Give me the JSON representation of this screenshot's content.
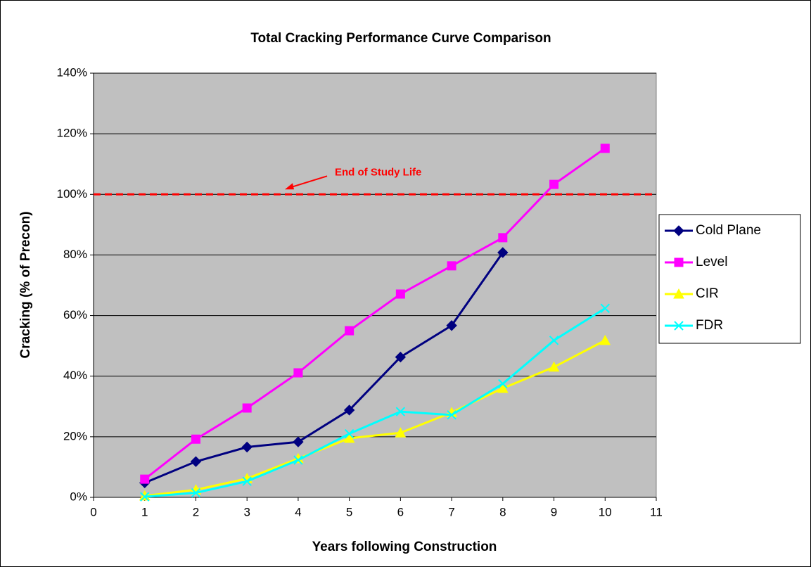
{
  "chart_data": {
    "type": "line",
    "title": "Total Cracking Performance Curve Comparison",
    "x_label": "Years following Construction",
    "y_label": "Cracking (% of Precon)",
    "x": [
      1,
      2,
      3,
      4,
      5,
      6,
      7,
      8,
      9,
      10
    ],
    "series": [
      {
        "name": "Cold Plane",
        "color": "#000080",
        "marker": "diamond",
        "values": [
          4.8,
          11.8,
          16.6,
          18.3,
          28.8,
          46.3,
          56.7,
          80.8,
          null,
          null
        ]
      },
      {
        "name": "Level",
        "color": "#ff00ff",
        "marker": "square",
        "values": [
          6.0,
          19.2,
          29.5,
          41.1,
          55.0,
          67.1,
          76.4,
          85.7,
          103.3,
          115.2
        ]
      },
      {
        "name": "CIR",
        "color": "#ffff00",
        "marker": "triangle",
        "values": [
          0.5,
          2.5,
          6.2,
          12.8,
          19.5,
          21.3,
          28.0,
          36.0,
          43.0,
          51.8
        ]
      },
      {
        "name": "FDR",
        "color": "#00ffff",
        "marker": "x",
        "values": [
          0.2,
          1.5,
          5.3,
          12.3,
          21.0,
          28.3,
          27.2,
          37.5,
          51.8,
          62.4
        ]
      }
    ],
    "reference_line": {
      "value": 100,
      "label": "End of Study Life",
      "color": "#ff0000"
    },
    "xlim": [
      0,
      11
    ],
    "xticks": [
      0,
      1,
      2,
      3,
      4,
      5,
      6,
      7,
      8,
      9,
      10,
      11
    ],
    "ylim": [
      0,
      140
    ],
    "yticks": [
      {
        "value": 0,
        "label": "0%"
      },
      {
        "value": 20,
        "label": "20%"
      },
      {
        "value": 40,
        "label": "40%"
      },
      {
        "value": 60,
        "label": "60%"
      },
      {
        "value": 80,
        "label": "80%"
      },
      {
        "value": 100,
        "label": "100%"
      },
      {
        "value": 120,
        "label": "120%"
      },
      {
        "value": 140,
        "label": "140%"
      }
    ],
    "grid": true,
    "legend": "right",
    "plot_background": "#c0c0c0"
  }
}
